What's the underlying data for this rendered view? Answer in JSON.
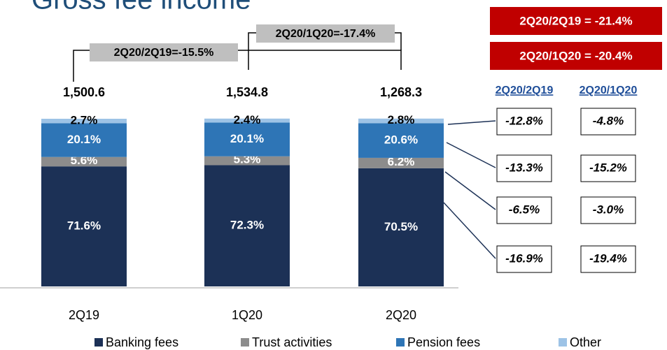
{
  "chart_data": {
    "type": "stacked_bar",
    "title": "Gross fee income",
    "categories": [
      "2Q19",
      "1Q20",
      "2Q20"
    ],
    "series": [
      {
        "name": "Banking fees",
        "color": "#1c3156",
        "values": [
          71.6,
          72.3,
          70.5
        ],
        "value_labels": [
          "71.6%",
          "72.3%",
          "70.5%"
        ]
      },
      {
        "name": "Trust activities",
        "color": "#8c8c8c",
        "values": [
          5.6,
          5.3,
          6.2
        ],
        "value_labels": [
          "5.6%",
          "5.3%",
          "6.2%"
        ]
      },
      {
        "name": "Pension fees",
        "color": "#2e75b6",
        "values": [
          20.1,
          20.1,
          20.6
        ],
        "value_labels": [
          "20.1%",
          "20.1%",
          "20.6%"
        ]
      },
      {
        "name": "Other",
        "color": "#9dc3e6",
        "values": [
          2.7,
          2.4,
          2.8
        ],
        "value_labels": [
          "2.7%",
          "2.4%",
          "2.8%"
        ]
      }
    ],
    "totals": {
      "values": [
        1500.6,
        1534.8,
        1268.3
      ],
      "value_labels": [
        "1,500.6",
        "1,534.8",
        "1,268.3"
      ]
    },
    "brackets": [
      "2Q20/2Q19=-15.5%",
      "2Q20/1Q20=-17.4%"
    ],
    "highlights": [
      "2Q20/2Q19 = -21.4%",
      "2Q20/1Q20 = -20.4%"
    ],
    "change_table": {
      "columns": [
        {
          "header": "2Q20/2Q19",
          "values": [
            "-12.8%",
            "-13.3%",
            "-6.5%",
            "-16.9%"
          ]
        },
        {
          "header": "2Q20/1Q20",
          "values": [
            "-4.8%",
            "-15.2%",
            "-3.0%",
            "-19.4%"
          ]
        }
      ]
    },
    "ylim": [
      0,
      100
    ],
    "legend": "bottom"
  }
}
